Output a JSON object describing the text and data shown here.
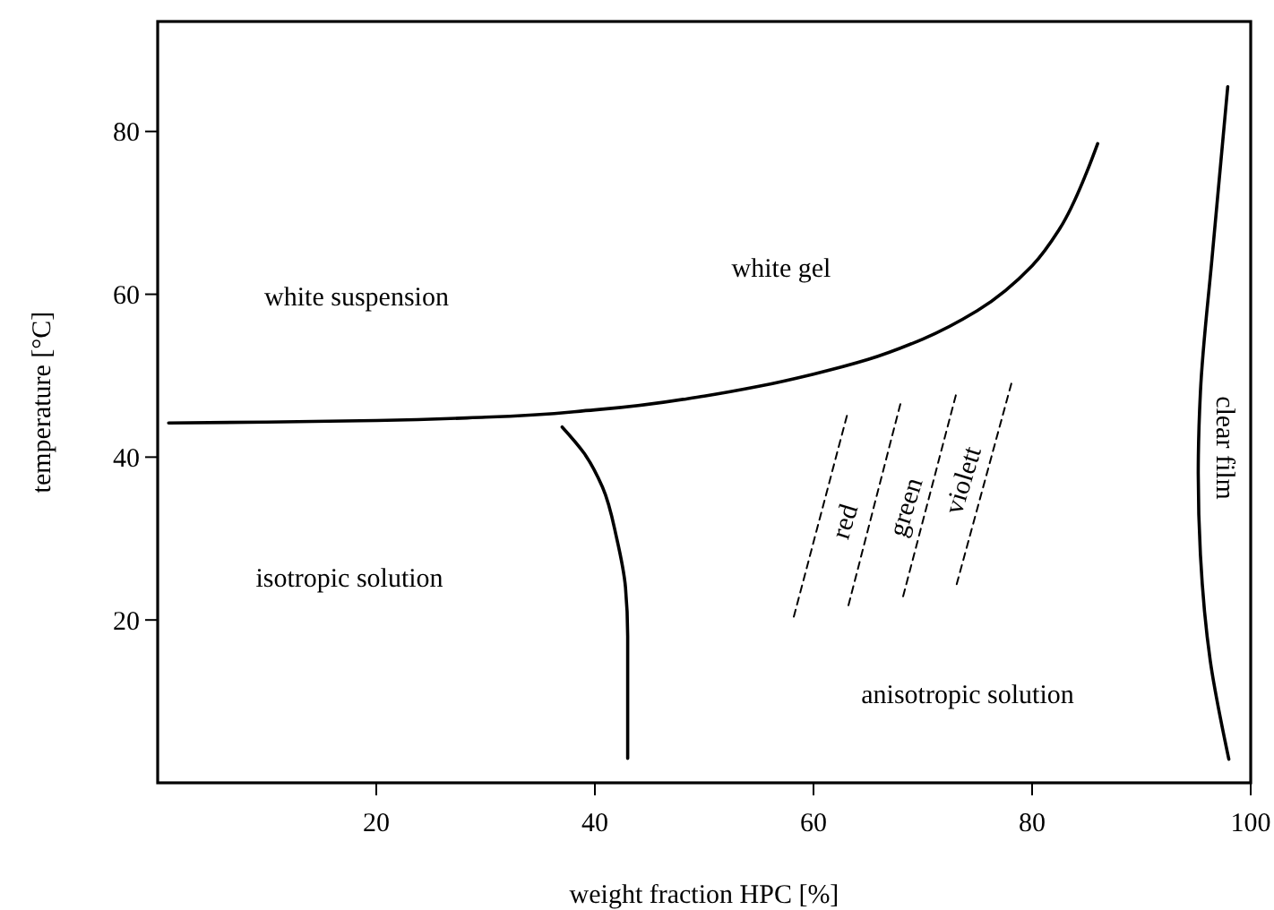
{
  "chart_data": {
    "type": "line",
    "xlabel": "weight fraction HPC [%]",
    "ylabel": "temperature [°C]",
    "xlim": [
      0,
      100
    ],
    "ylim": [
      0,
      93.5
    ],
    "xticks": [
      20,
      40,
      60,
      80,
      100
    ],
    "yticks": [
      20,
      40,
      60,
      80
    ],
    "grid": false,
    "marker": "none",
    "series": [
      {
        "color": "#000000",
        "line_style": "solid",
        "x": [
          1,
          10,
          20,
          30,
          40,
          50,
          55,
          60,
          65,
          70,
          75,
          80,
          82.5,
          85,
          86
        ],
        "values": [
          44.2,
          44.3,
          44.5,
          44.9,
          45.8,
          47.5,
          48.7,
          50.2,
          52,
          54.5,
          58,
          63.5,
          68,
          75,
          78.5
        ]
      },
      {
        "color": "#000000",
        "line_style": "solid",
        "x": [
          37,
          39,
          40.7,
          42,
          42.8,
          43,
          43
        ],
        "values": [
          43.7,
          40.5,
          36.3,
          30,
          24,
          18,
          3
        ]
      },
      {
        "color": "#000000",
        "line_style": "solid",
        "x": [
          97.9,
          96.5,
          95.4,
          95.2,
          95.4,
          96.3,
          98
        ],
        "values": [
          85.5,
          65,
          48,
          38,
          28,
          15,
          2.9
        ]
      },
      {
        "color": "#000000",
        "line_style": "dashed",
        "x": [
          58.2,
          63.1
        ],
        "values": [
          20.4,
          45.3
        ]
      },
      {
        "color": "#000000",
        "line_style": "dashed",
        "x": [
          63.2,
          68
        ],
        "values": [
          21.8,
          46.8
        ]
      },
      {
        "color": "#000000",
        "line_style": "dashed",
        "x": [
          68.2,
          73.1
        ],
        "values": [
          22.9,
          48
        ]
      },
      {
        "color": "#000000",
        "line_style": "dashed",
        "x": [
          73.1,
          78.2
        ],
        "values": [
          24.4,
          49.5
        ]
      }
    ],
    "annotations": [
      "white suspension",
      "white gel",
      "isotropic solution",
      "anisotropic solution",
      "red",
      "green",
      "violett",
      "clear film"
    ]
  }
}
